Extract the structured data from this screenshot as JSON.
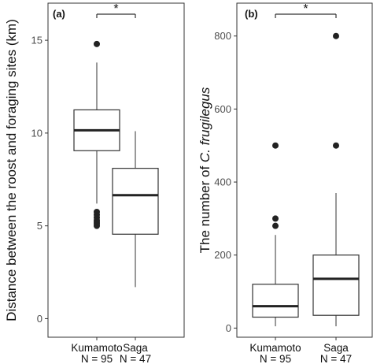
{
  "chart_data": [
    {
      "type": "box",
      "panel_label": "(a)",
      "ylabel": "Distance between the roost and foraging sites (km)",
      "ylim": [
        -1,
        17
      ],
      "yticks": [
        0,
        5,
        10,
        15
      ],
      "significance": "*",
      "categories": [
        {
          "name": "Kumamoto",
          "n_label": "N = 95",
          "whisker_low": 6.2,
          "q1": 9.05,
          "median": 10.15,
          "q3": 11.25,
          "whisker_high": 13.8,
          "outliers": [
            5.0,
            5.1,
            5.2,
            5.3,
            5.45,
            5.6,
            5.75,
            14.8
          ]
        },
        {
          "name": "Saga",
          "n_label": "N = 47",
          "whisker_low": 1.7,
          "q1": 4.55,
          "median": 6.65,
          "q3": 8.1,
          "whisker_high": 10.1,
          "outliers": []
        }
      ]
    },
    {
      "type": "box",
      "panel_label": "(b)",
      "ylabel": "The number of C. frugilegus",
      "ylabel_parts": {
        "prefix": "The number of ",
        "italic": "C. frugilegus"
      },
      "ylim": [
        -25,
        890
      ],
      "yticks": [
        0,
        200,
        400,
        600,
        800
      ],
      "significance": "*",
      "categories": [
        {
          "name": "Kumamoto",
          "n_label": "N = 95",
          "whisker_low": 5,
          "q1": 30,
          "median": 60,
          "q3": 120,
          "whisker_high": 255,
          "outliers": [
            280,
            300,
            500
          ]
        },
        {
          "name": "Saga",
          "n_label": "N = 47",
          "whisker_low": 5,
          "q1": 35,
          "median": 135,
          "q3": 200,
          "whisker_high": 370,
          "outliers": [
            500,
            800
          ]
        }
      ]
    }
  ]
}
